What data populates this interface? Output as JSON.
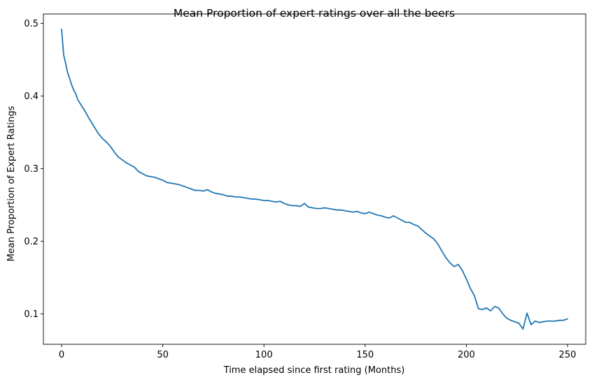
{
  "chart_data": {
    "type": "line",
    "title": "Mean Proportion of expert ratings over all the beers",
    "xlabel": "Time elapsed since first rating (Months)",
    "ylabel": "Mean Proportion of Expert Ratings",
    "xlim": [
      -9,
      259
    ],
    "ylim": [
      0.058,
      0.513
    ],
    "xticks": [
      0,
      50,
      100,
      150,
      200,
      250
    ],
    "yticks": [
      0.1,
      0.2,
      0.3,
      0.4,
      0.5
    ],
    "grid": false,
    "legend": "none",
    "line_color": "#1f77b4",
    "series": [
      {
        "x": [
          0,
          1,
          2,
          3,
          4,
          5,
          6,
          7,
          8,
          10,
          12,
          14,
          16,
          18,
          20,
          22,
          24,
          26,
          28,
          30,
          32,
          34,
          36,
          38,
          40,
          42,
          44,
          46,
          48,
          50,
          52,
          54,
          56,
          58,
          60,
          62,
          64,
          66,
          68,
          70,
          72,
          74,
          76,
          78,
          80,
          82,
          84,
          86,
          88,
          90,
          92,
          94,
          96,
          98,
          100,
          102,
          104,
          106,
          108,
          110,
          112,
          114,
          116,
          118,
          120,
          122,
          124,
          126,
          128,
          130,
          132,
          134,
          136,
          138,
          140,
          142,
          144,
          146,
          148,
          150,
          152,
          154,
          156,
          158,
          160,
          162,
          164,
          166,
          168,
          170,
          172,
          174,
          176,
          178,
          180,
          182,
          184,
          186,
          188,
          190,
          192,
          194,
          196,
          198,
          200,
          202,
          204,
          206,
          208,
          210,
          212,
          214,
          216,
          218,
          220,
          222,
          224,
          226,
          228,
          230,
          232,
          234,
          236,
          238,
          240,
          242,
          244,
          246,
          248,
          250
        ],
        "values": [
          0.492,
          0.457,
          0.445,
          0.432,
          0.424,
          0.415,
          0.408,
          0.403,
          0.395,
          0.386,
          0.377,
          0.367,
          0.358,
          0.349,
          0.342,
          0.337,
          0.331,
          0.323,
          0.316,
          0.312,
          0.308,
          0.305,
          0.302,
          0.296,
          0.293,
          0.29,
          0.289,
          0.288,
          0.286,
          0.284,
          0.281,
          0.28,
          0.279,
          0.278,
          0.276,
          0.274,
          0.272,
          0.27,
          0.27,
          0.269,
          0.271,
          0.268,
          0.266,
          0.265,
          0.264,
          0.262,
          0.262,
          0.261,
          0.261,
          0.26,
          0.259,
          0.258,
          0.258,
          0.257,
          0.256,
          0.256,
          0.255,
          0.254,
          0.255,
          0.252,
          0.25,
          0.249,
          0.249,
          0.248,
          0.252,
          0.247,
          0.246,
          0.245,
          0.245,
          0.246,
          0.245,
          0.244,
          0.243,
          0.243,
          0.242,
          0.241,
          0.24,
          0.241,
          0.239,
          0.238,
          0.24,
          0.238,
          0.236,
          0.235,
          0.233,
          0.232,
          0.235,
          0.232,
          0.229,
          0.226,
          0.226,
          0.223,
          0.221,
          0.216,
          0.211,
          0.207,
          0.203,
          0.196,
          0.186,
          0.177,
          0.17,
          0.165,
          0.168,
          0.16,
          0.148,
          0.135,
          0.125,
          0.107,
          0.106,
          0.108,
          0.104,
          0.11,
          0.108,
          0.1,
          0.094,
          0.091,
          0.089,
          0.087,
          0.079,
          0.101,
          0.085,
          0.09,
          0.088,
          0.089,
          0.09,
          0.09,
          0.09,
          0.091,
          0.091,
          0.093
        ]
      }
    ]
  }
}
